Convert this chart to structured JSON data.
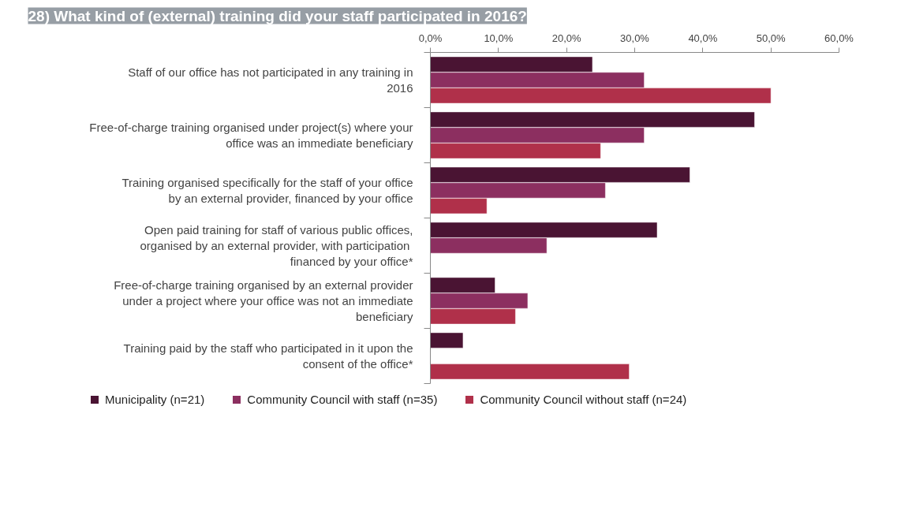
{
  "chart_data": {
    "type": "bar",
    "orientation": "horizontal",
    "title": "28) What kind of (external) training did your staff participated in 2016?",
    "categories": [
      "Staff of our office has not participated in any training in 2016",
      "Free-of-charge training organised under project(s) where your office was an immediate beneficiary",
      "Training organised specifically for the staff of your office by an external provider, financed by your office",
      "Open paid training for staff of various public offices, organised by an external  provider, with participation financed by your office*",
      "Free-of-charge training organised by an external provider under a project where your office was not an immediate beneficiary",
      "Training paid by the staff who participated in it upon the consent of the office*"
    ],
    "series": [
      {
        "name": "Municipality  (n=21)",
        "color": "#4a1433",
        "values": [
          23.8,
          47.6,
          38.1,
          33.3,
          9.5,
          4.8
        ]
      },
      {
        "name": "Community Council with staff (n=35)",
        "color": "#8c2f60",
        "values": [
          31.4,
          31.4,
          25.7,
          17.1,
          14.3,
          null
        ]
      },
      {
        "name": "Community Council without staff (n=24)",
        "color": "#b0304a",
        "values": [
          50.0,
          25.0,
          8.3,
          null,
          12.5,
          29.2
        ]
      }
    ],
    "xlim": [
      0,
      60
    ],
    "xticks": [
      {
        "value": 0,
        "label": "0,0%"
      },
      {
        "value": 10,
        "label": "10,0%"
      },
      {
        "value": 20,
        "label": "20,0%"
      },
      {
        "value": 30,
        "label": "30,0%"
      },
      {
        "value": 40,
        "label": "40,0%"
      },
      {
        "value": 50,
        "label": "50,0%"
      },
      {
        "value": 60,
        "label": "60,0%"
      }
    ],
    "grid": false,
    "legend": "bottom"
  }
}
